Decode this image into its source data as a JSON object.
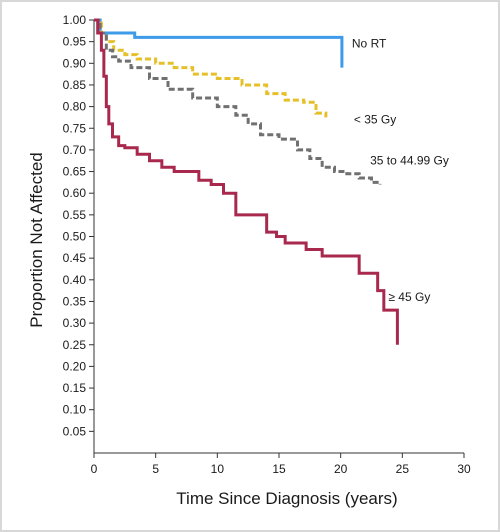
{
  "chart_data": {
    "type": "line",
    "step": true,
    "title": "",
    "xlabel": "Time Since Diagnosis (years)",
    "ylabel": "Proportion Not Affected",
    "xlim": [
      0,
      30
    ],
    "ylim": [
      0,
      1.0
    ],
    "xticks": [
      "0",
      "5",
      "10",
      "15",
      "20",
      "25",
      "30"
    ],
    "yticks": [
      "0.05",
      "0.10",
      "0.15",
      "0.20",
      "0.25",
      "0.30",
      "0.35",
      "0.40",
      "0.45",
      "0.50",
      "0.55",
      "0.60",
      "0.65",
      "0.70",
      "0.75",
      "0.80",
      "0.85",
      "0.90",
      "0.95",
      "1.00"
    ],
    "grid": false,
    "legend": "labels placed at line ends",
    "series": [
      {
        "name": "No RT",
        "color": "#3d9be9",
        "dash": "solid",
        "x": [
          0,
          0.5,
          0.5,
          3.3,
          3.3,
          20.1,
          20.1
        ],
        "y": [
          1.0,
          1.0,
          0.97,
          0.97,
          0.96,
          0.96,
          0.89
        ]
      },
      {
        "name": "< 35 Gy",
        "color": "#e6c02a",
        "dash": "dashed",
        "x": [
          0,
          0.6,
          1.0,
          1.6,
          2.5,
          3.5,
          5.0,
          6.5,
          8.0,
          10.0,
          12.0,
          14.0,
          15.5,
          17.0,
          18.0,
          18.8
        ],
        "y": [
          1.0,
          0.97,
          0.95,
          0.93,
          0.92,
          0.91,
          0.9,
          0.89,
          0.875,
          0.865,
          0.85,
          0.83,
          0.815,
          0.81,
          0.785,
          0.775
        ]
      },
      {
        "name": "35 to 44.99 Gy",
        "color": "#707070",
        "dash": "dashed",
        "x": [
          0,
          0.5,
          1.0,
          1.5,
          2.0,
          3.0,
          4.5,
          6.0,
          8.0,
          10.0,
          11.5,
          12.5,
          13.5,
          15.0,
          16.5,
          17.5,
          18.5,
          19.5,
          20.5,
          21.5,
          22.5,
          23.2
        ],
        "y": [
          1.0,
          0.97,
          0.93,
          0.915,
          0.905,
          0.89,
          0.865,
          0.84,
          0.82,
          0.8,
          0.78,
          0.76,
          0.735,
          0.725,
          0.7,
          0.68,
          0.66,
          0.65,
          0.645,
          0.635,
          0.625,
          0.62
        ]
      },
      {
        "name": "≥ 45 Gy",
        "color": "#a8294d",
        "dash": "solid",
        "x": [
          0,
          0.3,
          0.6,
          0.8,
          1.0,
          1.2,
          1.5,
          2.0,
          2.5,
          3.5,
          4.5,
          5.5,
          6.5,
          8.5,
          9.5,
          10.5,
          11.5,
          14.0,
          14.8,
          15.5,
          17.2,
          18.5,
          20.5,
          21.5,
          22.0,
          23.0,
          23.5,
          24.5,
          24.6
        ],
        "y": [
          1.0,
          0.97,
          0.93,
          0.87,
          0.8,
          0.76,
          0.73,
          0.71,
          0.705,
          0.69,
          0.675,
          0.66,
          0.65,
          0.63,
          0.62,
          0.6,
          0.55,
          0.51,
          0.5,
          0.485,
          0.47,
          0.455,
          0.455,
          0.415,
          0.415,
          0.375,
          0.33,
          0.33,
          0.25
        ]
      }
    ]
  }
}
